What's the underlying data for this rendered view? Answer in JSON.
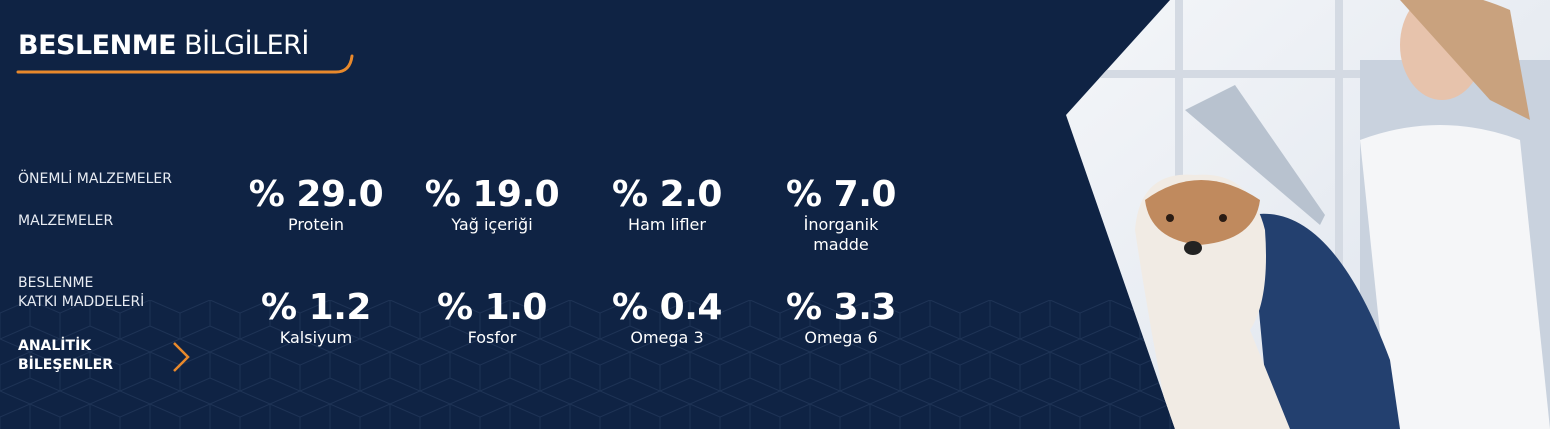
{
  "title": {
    "bold": "BESLENME",
    "light": "BİLGİLERİ"
  },
  "nav": [
    {
      "label": "ÖNEMLİ MALZEMELER",
      "active": false
    },
    {
      "label": "MALZEMELER",
      "active": false
    },
    {
      "label_line1": "BESLENME",
      "label_line2": "KATKI MADDELERİ",
      "active": false
    },
    {
      "label_line1": "ANALİTİK",
      "label_line2": "BİLEŞENLER",
      "active": true
    }
  ],
  "stats": [
    {
      "value": "% 29.0",
      "label": "Protein"
    },
    {
      "value": "% 19.0",
      "label": "Yağ içeriği"
    },
    {
      "value": "% 2.0",
      "label": "Ham lifler"
    },
    {
      "value": "% 7.0",
      "label_line1": "İnorganik",
      "label_line2": "madde"
    },
    {
      "value": "% 1.2",
      "label": "Kalsiyum"
    },
    {
      "value": "% 1.0",
      "label": "Fosfor"
    },
    {
      "value": "% 0.4",
      "label": "Omega 3"
    },
    {
      "value": "% 3.3",
      "label": "Omega 6"
    }
  ],
  "colors": {
    "background": "#0f2344",
    "accent": "#e8892c"
  },
  "icons": {
    "active_chevron": "chevron-right-icon"
  }
}
